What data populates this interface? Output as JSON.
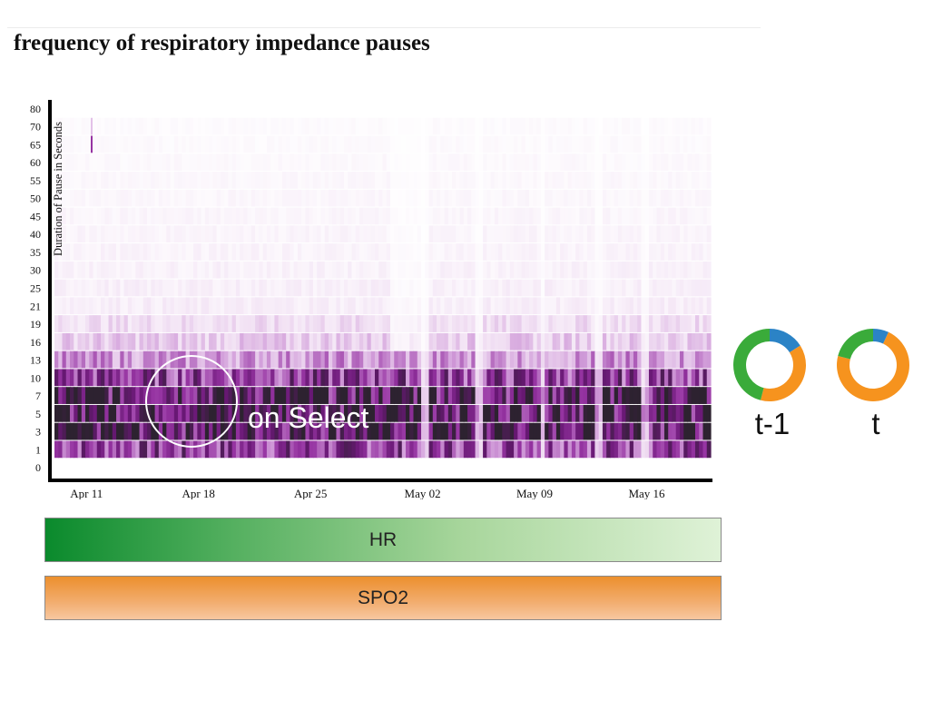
{
  "title": "frequency of respiratory impedance pauses",
  "chart_data": {
    "type": "heatmap",
    "title": "frequency of respiratory impedance pauses",
    "ylabel": "Duration of Pause in Seconds",
    "xlabel": "",
    "y_categories": [
      "0",
      "1",
      "3",
      "5",
      "7",
      "10",
      "13",
      "16",
      "19",
      "21",
      "25",
      "30",
      "35",
      "40",
      "45",
      "50",
      "55",
      "60",
      "65",
      "70",
      "80"
    ],
    "x_ticks": [
      "Apr 11",
      "Apr 18",
      "Apr 25",
      "May 02",
      "May 09",
      "May 16"
    ],
    "x_range": [
      "2015-04-09",
      "2015-05-20"
    ],
    "row_intensity": {
      "0": 0.0,
      "1": 0.62,
      "3": 0.88,
      "5": 0.92,
      "7": 0.86,
      "10": 0.62,
      "13": 0.36,
      "16": 0.22,
      "19": 0.16,
      "21": 0.09,
      "25": 0.08,
      "30": 0.07,
      "35": 0.06,
      "40": 0.055,
      "45": 0.05,
      "50": 0.045,
      "55": 0.04,
      "60": 0.035,
      "65": 0.03,
      "70": 0.025,
      "80": 0.0
    },
    "color_scale": [
      "#ffffff",
      "#d9b3df",
      "#9a3aa6",
      "#6a1b76",
      "#2d2230"
    ]
  },
  "annotation": {
    "label": "on Select"
  },
  "bars": [
    {
      "label": "HR",
      "color": "#0a8a2c"
    },
    {
      "label": "SPO2",
      "color": "#ec8f2d"
    }
  ],
  "donuts": [
    {
      "label": "t-1",
      "slices": [
        {
          "name": "blue",
          "value": 0.16,
          "color": "#2b83c6"
        },
        {
          "name": "orange",
          "value": 0.38,
          "color": "#f6931e"
        },
        {
          "name": "green",
          "value": 0.46,
          "color": "#3aab3a"
        }
      ]
    },
    {
      "label": "t",
      "slices": [
        {
          "name": "blue",
          "value": 0.07,
          "color": "#2b83c6"
        },
        {
          "name": "orange",
          "value": 0.72,
          "color": "#f6931e"
        },
        {
          "name": "green",
          "value": 0.21,
          "color": "#3aab3a"
        }
      ]
    }
  ]
}
